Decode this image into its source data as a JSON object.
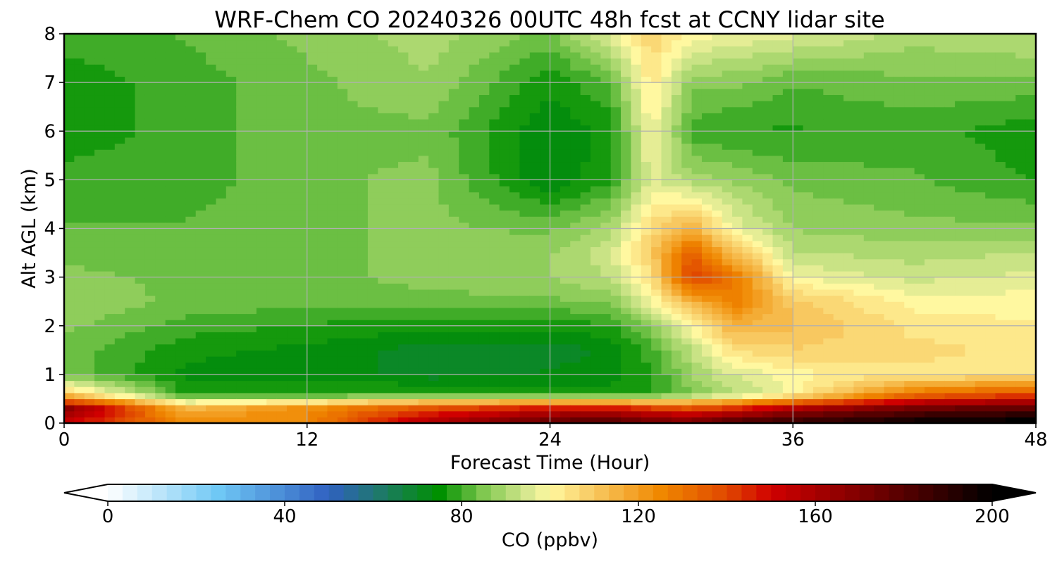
{
  "chart_data": {
    "type": "heatmap",
    "subtype": "filled-contour time-height cross-section",
    "title": "WRF-Chem CO  20240326 00UTC 48h fcst at CCNY lidar site",
    "xlabel": "Forecast Time (Hour)",
    "ylabel": "Alt AGL (km)",
    "xlim": [
      0,
      48
    ],
    "ylim": [
      0,
      8
    ],
    "x_ticks": [
      0,
      12,
      24,
      36,
      48
    ],
    "y_ticks": [
      0,
      1,
      2,
      3,
      4,
      5,
      6,
      7,
      8
    ],
    "grid": true,
    "x_sample_hours": [
      0,
      6,
      12,
      18,
      24,
      27,
      29,
      31,
      33,
      36,
      42,
      48
    ],
    "y_sample_km": [
      0.0,
      0.3,
      0.6,
      1.0,
      1.5,
      2.0,
      2.5,
      3.0,
      3.5,
      4.0,
      5.0,
      6.0,
      7.0,
      8.0
    ],
    "values_ppbv": [
      [
        150,
        125,
        125,
        160,
        180,
        185,
        175,
        175,
        185,
        190,
        200,
        205
      ],
      [
        170,
        115,
        125,
        140,
        150,
        150,
        145,
        140,
        145,
        160,
        175,
        180
      ],
      [
        110,
        78,
        78,
        80,
        78,
        76,
        78,
        85,
        90,
        100,
        130,
        140
      ],
      [
        84,
        74,
        74,
        70,
        72,
        74,
        78,
        88,
        95,
        100,
        104,
        103
      ],
      [
        84,
        76,
        74,
        70,
        70,
        72,
        80,
        92,
        105,
        108,
        106,
        104
      ],
      [
        86,
        80,
        78,
        76,
        76,
        78,
        86,
        100,
        115,
        112,
        104,
        102
      ],
      [
        88,
        84,
        83,
        84,
        84,
        86,
        98,
        115,
        128,
        110,
        100,
        100
      ],
      [
        86,
        84,
        84,
        86,
        88,
        92,
        104,
        142,
        130,
        98,
        94,
        96
      ],
      [
        84,
        83,
        84,
        86,
        88,
        94,
        110,
        135,
        112,
        92,
        90,
        92
      ],
      [
        82,
        82,
        84,
        86,
        84,
        90,
        106,
        116,
        98,
        88,
        86,
        86
      ],
      [
        80,
        80,
        84,
        86,
        72,
        78,
        96,
        90,
        88,
        84,
        82,
        78
      ],
      [
        76,
        80,
        84,
        84,
        72,
        76,
        100,
        80,
        78,
        78,
        80,
        76
      ],
      [
        76,
        80,
        84,
        88,
        76,
        82,
        104,
        86,
        86,
        82,
        84,
        84
      ],
      [
        80,
        82,
        86,
        90,
        84,
        96,
        108,
        100,
        98,
        96,
        90,
        92
      ]
    ],
    "colorbar": {
      "label": "CO  (ppbv)",
      "min": 0,
      "max": 200,
      "ticks": [
        0,
        40,
        80,
        120,
        160,
        200
      ],
      "extend": "both",
      "levels": 61,
      "colormap_stops": [
        {
          "value": 0,
          "color": "#ffffff"
        },
        {
          "value": 25,
          "color": "#6fc8f5"
        },
        {
          "value": 50,
          "color": "#3060c0"
        },
        {
          "value": 62,
          "color": "#1d7a66"
        },
        {
          "value": 75,
          "color": "#009000"
        },
        {
          "value": 85,
          "color": "#80c850"
        },
        {
          "value": 95,
          "color": "#d8e890"
        },
        {
          "value": 100,
          "color": "#fff8a0"
        },
        {
          "value": 110,
          "color": "#f8c860"
        },
        {
          "value": 125,
          "color": "#f08800"
        },
        {
          "value": 140,
          "color": "#e04800"
        },
        {
          "value": 150,
          "color": "#d00000"
        },
        {
          "value": 170,
          "color": "#800000"
        },
        {
          "value": 200,
          "color": "#000000"
        }
      ]
    }
  }
}
